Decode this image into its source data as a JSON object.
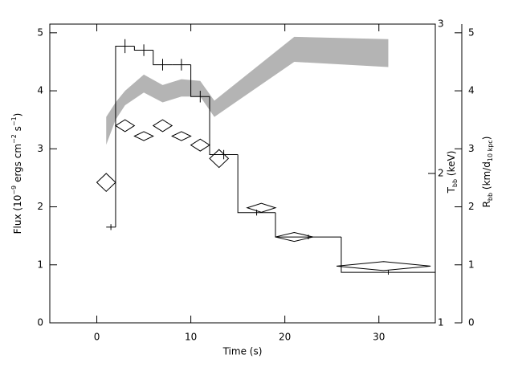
{
  "chart_data": {
    "type": "histogram",
    "xlabel": "Time (s)",
    "ylabel": {
      "parts": [
        {
          "text": "Flux (10"
        },
        {
          "text": "−9",
          "sup": true
        },
        {
          "text": " ergs cm"
        },
        {
          "text": "−2",
          "sup": true
        },
        {
          "text": " s"
        },
        {
          "text": "−1",
          "sup": true
        },
        {
          "text": ")"
        }
      ]
    },
    "y2label": {
      "parts": [
        {
          "text": "T"
        },
        {
          "text": "bb",
          "sub": true
        },
        {
          "text": " (keV)"
        }
      ]
    },
    "y3label": {
      "parts": [
        {
          "text": "R"
        },
        {
          "text": "bb",
          "sub": true
        },
        {
          "text": " (km/d"
        },
        {
          "text": "10 kpc",
          "sub": true
        },
        {
          "text": ")"
        }
      ]
    },
    "xlim": [
      -5,
      36
    ],
    "xticks": [
      0,
      10,
      20,
      30
    ],
    "ylim": [
      0,
      5.15
    ],
    "yticks": [
      0,
      1,
      2,
      3,
      4,
      5
    ],
    "y2lim": [
      1,
      3
    ],
    "y2ticks": [
      1,
      2,
      3
    ],
    "y3lim": [
      0,
      5.15
    ],
    "y3ticks": [
      0,
      1,
      2,
      3,
      4,
      5
    ],
    "bins": [
      1,
      2,
      4,
      6,
      8,
      10,
      12,
      15,
      19,
      26,
      36
    ],
    "values": [
      1.65,
      4.77,
      4.7,
      4.45,
      4.45,
      3.9,
      2.9,
      1.9,
      1.48,
      0.87
    ],
    "errors": [
      0.05,
      0.12,
      0.1,
      0.1,
      0.1,
      0.1,
      0.08,
      0.05,
      0.04,
      0.04
    ],
    "color": "#000000",
    "series": [
      {
        "type": "scatter",
        "axis": "y2",
        "color": "#000000",
        "x": [
          1,
          3,
          5,
          7,
          9,
          11,
          13,
          17.5,
          21,
          30.5
        ],
        "xerr": [
          1,
          1,
          1,
          1,
          1,
          1,
          1,
          1.5,
          2,
          5
        ],
        "values": [
          1.94,
          2.32,
          2.25,
          2.32,
          2.25,
          2.19,
          2.1,
          1.77,
          1.575,
          1.38
        ],
        "yerr": [
          0.06,
          0.04,
          0.03,
          0.04,
          0.03,
          0.04,
          0.06,
          0.03,
          0.03,
          0.03
        ]
      },
      {
        "type": "band",
        "axis": "y3",
        "color": "#b4b4b4",
        "x": [
          1,
          2,
          3,
          5,
          7,
          9,
          11,
          12.5,
          21,
          31
        ],
        "upper": [
          3.55,
          3.8,
          4.0,
          4.28,
          4.1,
          4.2,
          4.17,
          3.83,
          4.93,
          4.89
        ],
        "lower": [
          3.07,
          3.5,
          3.75,
          3.97,
          3.8,
          3.9,
          3.9,
          3.55,
          4.5,
          4.41
        ]
      }
    ]
  }
}
